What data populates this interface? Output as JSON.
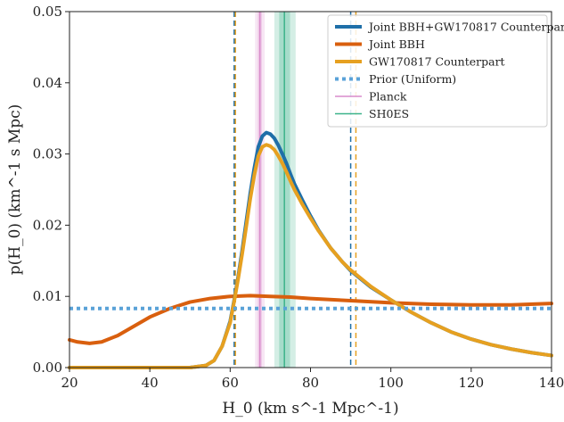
{
  "chart_data": {
    "type": "line",
    "title": "",
    "xlabel": "H_0 (km s^-1 Mpc^-1)",
    "ylabel": "p(H_0) (km^-1 s Mpc)",
    "xlim": [
      20,
      140
    ],
    "ylim": [
      0,
      0.05
    ],
    "x_ticks": [
      20,
      40,
      60,
      80,
      100,
      120,
      140
    ],
    "y_ticks": [
      0.0,
      0.01,
      0.02,
      0.03,
      0.04,
      0.05
    ],
    "x_tick_labels": [
      "20",
      "40",
      "60",
      "80",
      "100",
      "120",
      "140"
    ],
    "y_tick_labels": [
      "0.00",
      "0.01",
      "0.02",
      "0.03",
      "0.04",
      "0.05"
    ],
    "legend_position": "top-right",
    "grid": false,
    "series": [
      {
        "name": "Joint BBH+GW170817 Counterpart",
        "color": "#1f6fa8",
        "style": "solid",
        "x": [
          20,
          50,
          54,
          56,
          58,
          60,
          61,
          62,
          63,
          64,
          65,
          66,
          67,
          68,
          69,
          70,
          71,
          72,
          73,
          74,
          75,
          76,
          78,
          80,
          82,
          85,
          88,
          90,
          95,
          100,
          105,
          110,
          115,
          120,
          125,
          130,
          135,
          140
        ],
        "values": [
          0,
          0,
          0.0003,
          0.001,
          0.003,
          0.0065,
          0.0095,
          0.0128,
          0.0165,
          0.0205,
          0.0245,
          0.028,
          0.031,
          0.0325,
          0.033,
          0.0328,
          0.0322,
          0.0312,
          0.03,
          0.0287,
          0.0272,
          0.0258,
          0.0235,
          0.0213,
          0.0193,
          0.0168,
          0.0148,
          0.0136,
          0.0113,
          0.0095,
          0.0078,
          0.0063,
          0.005,
          0.004,
          0.0032,
          0.0026,
          0.0021,
          0.0017
        ]
      },
      {
        "name": "Joint BBH",
        "color": "#d95f0e",
        "style": "solid",
        "x": [
          20,
          22,
          25,
          28,
          32,
          36,
          40,
          45,
          50,
          55,
          60,
          65,
          70,
          75,
          80,
          90,
          100,
          110,
          120,
          130,
          140
        ],
        "values": [
          0.0039,
          0.0036,
          0.0034,
          0.0036,
          0.0045,
          0.0058,
          0.0071,
          0.0083,
          0.0092,
          0.0097,
          0.01,
          0.0101,
          0.01,
          0.0099,
          0.0097,
          0.0094,
          0.0091,
          0.0089,
          0.0088,
          0.0088,
          0.009
        ]
      },
      {
        "name": "GW170817 Counterpart",
        "color": "#e6a020",
        "style": "solid",
        "x": [
          20,
          50,
          54,
          56,
          58,
          60,
          61,
          62,
          63,
          64,
          65,
          66,
          67,
          68,
          69,
          70,
          71,
          72,
          73,
          74,
          75,
          76,
          78,
          80,
          82,
          85,
          88,
          90,
          95,
          100,
          105,
          110,
          115,
          120,
          125,
          130,
          135,
          140
        ],
        "values": [
          0,
          0,
          0.0003,
          0.001,
          0.003,
          0.0063,
          0.0093,
          0.0125,
          0.016,
          0.0198,
          0.0237,
          0.027,
          0.0297,
          0.031,
          0.0313,
          0.0311,
          0.0306,
          0.0297,
          0.0287,
          0.0275,
          0.0262,
          0.025,
          0.0229,
          0.021,
          0.0192,
          0.0168,
          0.0148,
          0.0137,
          0.0114,
          0.0095,
          0.0078,
          0.0063,
          0.005,
          0.004,
          0.0032,
          0.0026,
          0.0021,
          0.0017
        ]
      },
      {
        "name": "Prior (Uniform)",
        "color": "#5aa2d8",
        "style": "dotted",
        "x": [
          20,
          140
        ],
        "values": [
          0.0083,
          0.0083
        ]
      }
    ],
    "bands": [
      {
        "name": "Planck",
        "color": "#d98ccb",
        "center": 67.4,
        "lo": 66.9,
        "hi": 67.9,
        "outer_lo": 66.2,
        "outer_hi": 68.6
      },
      {
        "name": "SH0ES",
        "color": "#3cb38a",
        "center": 73.5,
        "lo": 72.2,
        "hi": 74.9,
        "outer_lo": 71.0,
        "outer_hi": 76.3
      }
    ],
    "interval_lines": [
      {
        "series": "Joint BBH+GW170817 Counterpart",
        "color": "#1f6fa8",
        "x": [
          61.0,
          90.0
        ]
      },
      {
        "series": "GW170817 Counterpart",
        "color": "#e6a020",
        "x": [
          61.3,
          91.3
        ]
      }
    ]
  }
}
